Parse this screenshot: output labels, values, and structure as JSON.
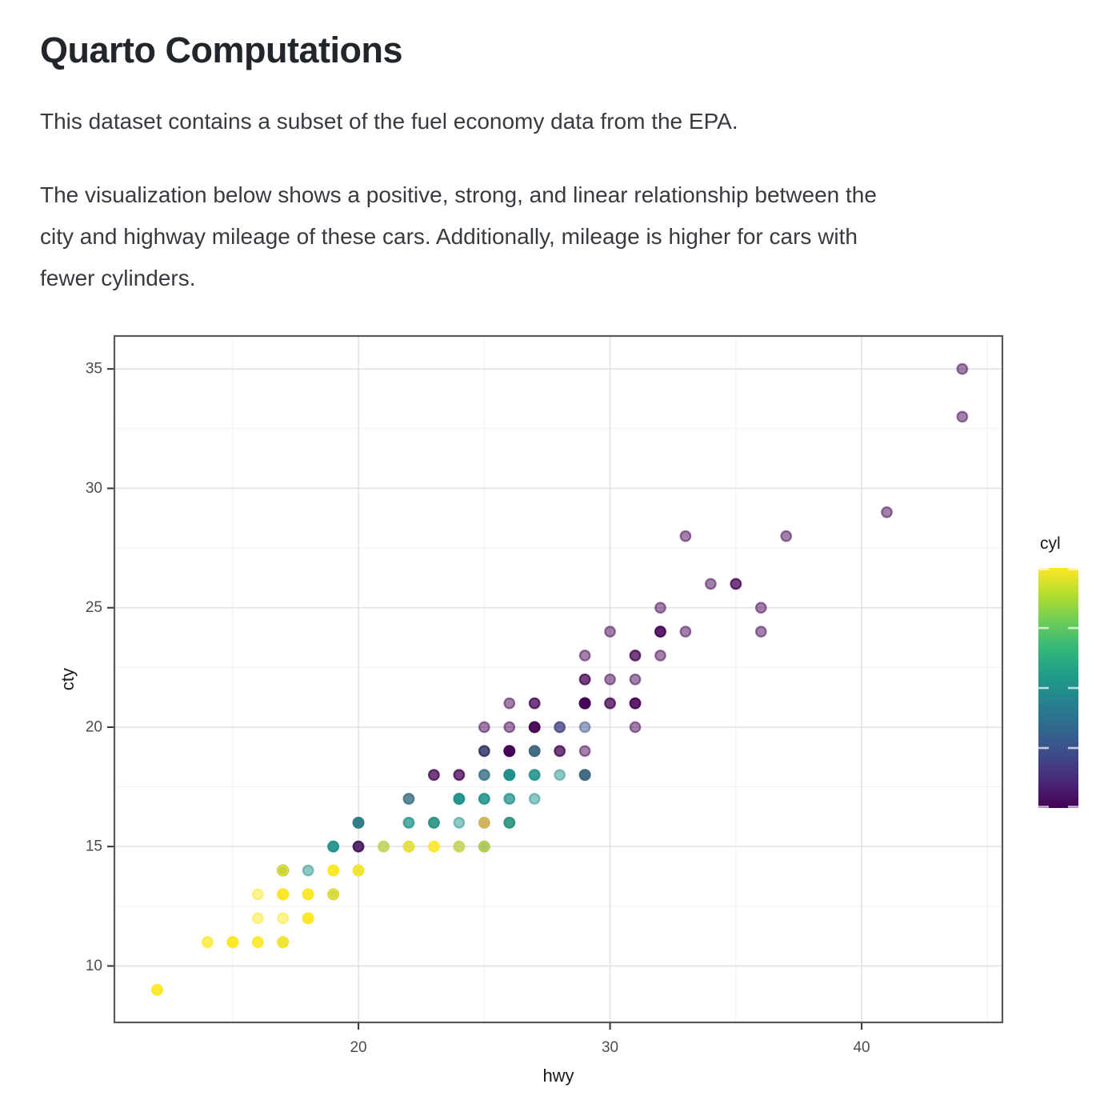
{
  "title": "Quarto Computations",
  "paragraphs": {
    "p1": "This dataset contains a subset of the fuel economy data from the EPA.",
    "p2": "The visualization below shows a positive, strong, and linear relationship between the\ncity and highway mileage of these cars. Additionally, mileage is higher for cars with\nfewer cylinders."
  },
  "chart_data": {
    "type": "scatter",
    "xlabel": "hwy",
    "ylabel": "cty",
    "xlim": [
      10.3,
      45.7
    ],
    "ylim": [
      7.6,
      36.4
    ],
    "x_ticks": [
      20,
      30,
      40
    ],
    "y_ticks": [
      10,
      15,
      20,
      25,
      30,
      35
    ],
    "x_minor": [
      15,
      25,
      35,
      45
    ],
    "y_minor": [
      12.5,
      17.5,
      22.5,
      27.5,
      32.5
    ],
    "grid": "on",
    "point_alpha": 0.5,
    "panel_border_color": "#5a5a5a",
    "major_grid_color": "#e2e2e2",
    "minor_grid_color": "#f0f0f0",
    "tick_color": "#333333",
    "tick_label_color": "#4d4d4d",
    "axis_title_color": "#1a1a1a",
    "legend": {
      "title": "cyl",
      "position": "right",
      "min": 4,
      "max": 8,
      "tick_values": [
        8,
        7,
        6,
        5,
        4
      ],
      "colors": {
        "4": "#440154",
        "5": "#3B528B",
        "6": "#21918C",
        "8": "#FDE725"
      },
      "gradient_top_to_bottom": [
        "#FDE725",
        "#B4DE2C",
        "#6DCD59",
        "#35B779",
        "#1F9E89",
        "#26828E",
        "#31688E",
        "#3E4A89",
        "#482878",
        "#440154"
      ]
    },
    "points": [
      {
        "hwy": 44,
        "cty": 35,
        "cyl": [
          4
        ]
      },
      {
        "hwy": 44,
        "cty": 33,
        "cyl": [
          4
        ]
      },
      {
        "hwy": 41,
        "cty": 29,
        "cyl": [
          4
        ]
      },
      {
        "hwy": 33,
        "cty": 28,
        "cyl": [
          4
        ]
      },
      {
        "hwy": 37,
        "cty": 28,
        "cyl": [
          4
        ]
      },
      {
        "hwy": 34,
        "cty": 26,
        "cyl": [
          4
        ]
      },
      {
        "hwy": 35,
        "cty": 26,
        "cyl": [
          4,
          4
        ]
      },
      {
        "hwy": 32,
        "cty": 25,
        "cyl": [
          4
        ]
      },
      {
        "hwy": 36,
        "cty": 25,
        "cyl": [
          4
        ]
      },
      {
        "hwy": 30,
        "cty": 24,
        "cyl": [
          4
        ]
      },
      {
        "hwy": 32,
        "cty": 24,
        "cyl": [
          4,
          4,
          4
        ]
      },
      {
        "hwy": 33,
        "cty": 24,
        "cyl": [
          4
        ]
      },
      {
        "hwy": 36,
        "cty": 24,
        "cyl": [
          4
        ]
      },
      {
        "hwy": 29,
        "cty": 23,
        "cyl": [
          4
        ]
      },
      {
        "hwy": 31,
        "cty": 23,
        "cyl": [
          4,
          4
        ]
      },
      {
        "hwy": 32,
        "cty": 23,
        "cyl": [
          4
        ]
      },
      {
        "hwy": 29,
        "cty": 22,
        "cyl": [
          4,
          4
        ]
      },
      {
        "hwy": 30,
        "cty": 22,
        "cyl": [
          4
        ]
      },
      {
        "hwy": 31,
        "cty": 22,
        "cyl": [
          4
        ]
      },
      {
        "hwy": 26,
        "cty": 21,
        "cyl": [
          4
        ]
      },
      {
        "hwy": 27,
        "cty": 21,
        "cyl": [
          4,
          4
        ]
      },
      {
        "hwy": 29,
        "cty": 21,
        "cyl": [
          5,
          5,
          4,
          4,
          4,
          4,
          4,
          4,
          4,
          4
        ]
      },
      {
        "hwy": 30,
        "cty": 21,
        "cyl": [
          4,
          4
        ]
      },
      {
        "hwy": 31,
        "cty": 21,
        "cyl": [
          4,
          4,
          4
        ]
      },
      {
        "hwy": 25,
        "cty": 20,
        "cyl": [
          4
        ]
      },
      {
        "hwy": 26,
        "cty": 20,
        "cyl": [
          4
        ]
      },
      {
        "hwy": 27,
        "cty": 20,
        "cyl": [
          4,
          4,
          4,
          4
        ]
      },
      {
        "hwy": 28,
        "cty": 20,
        "cyl": [
          4,
          5
        ]
      },
      {
        "hwy": 29,
        "cty": 20,
        "cyl": [
          5
        ]
      },
      {
        "hwy": 31,
        "cty": 20,
        "cyl": [
          4
        ]
      },
      {
        "hwy": 25,
        "cty": 19,
        "cyl": [
          6,
          6,
          4
        ]
      },
      {
        "hwy": 26,
        "cty": 19,
        "cyl": [
          6,
          4,
          4,
          4,
          4,
          4
        ]
      },
      {
        "hwy": 27,
        "cty": 19,
        "cyl": [
          4,
          4,
          6
        ]
      },
      {
        "hwy": 28,
        "cty": 19,
        "cyl": [
          4,
          4
        ]
      },
      {
        "hwy": 29,
        "cty": 19,
        "cyl": [
          4
        ]
      },
      {
        "hwy": 23,
        "cty": 18,
        "cyl": [
          4,
          4
        ]
      },
      {
        "hwy": 24,
        "cty": 18,
        "cyl": [
          4,
          4
        ]
      },
      {
        "hwy": 25,
        "cty": 18,
        "cyl": [
          4,
          6
        ]
      },
      {
        "hwy": 26,
        "cty": 18,
        "cyl": [
          4,
          6,
          6,
          6,
          6,
          6,
          6,
          6,
          6,
          6
        ]
      },
      {
        "hwy": 27,
        "cty": 18,
        "cyl": [
          6,
          6,
          6
        ]
      },
      {
        "hwy": 28,
        "cty": 18,
        "cyl": [
          6
        ]
      },
      {
        "hwy": 29,
        "cty": 18,
        "cyl": [
          4,
          4,
          6
        ]
      },
      {
        "hwy": 22,
        "cty": 17,
        "cyl": [
          4,
          6
        ]
      },
      {
        "hwy": 24,
        "cty": 17,
        "cyl": [
          6,
          6,
          6,
          6,
          6
        ]
      },
      {
        "hwy": 25,
        "cty": 17,
        "cyl": [
          6,
          6,
          6
        ]
      },
      {
        "hwy": 26,
        "cty": 17,
        "cyl": [
          6,
          6
        ]
      },
      {
        "hwy": 27,
        "cty": 17,
        "cyl": [
          6
        ]
      },
      {
        "hwy": 20,
        "cty": 16,
        "cyl": [
          4,
          4,
          6,
          6
        ]
      },
      {
        "hwy": 22,
        "cty": 16,
        "cyl": [
          6,
          6
        ]
      },
      {
        "hwy": 23,
        "cty": 16,
        "cyl": [
          8,
          6,
          6,
          6
        ]
      },
      {
        "hwy": 24,
        "cty": 16,
        "cyl": [
          6
        ]
      },
      {
        "hwy": 25,
        "cty": 16,
        "cyl": [
          4,
          8
        ]
      },
      {
        "hwy": 26,
        "cty": 16,
        "cyl": [
          8,
          8,
          6,
          6,
          6
        ]
      },
      {
        "hwy": 19,
        "cty": 15,
        "cyl": [
          6,
          6,
          6,
          6
        ]
      },
      {
        "hwy": 20,
        "cty": 15,
        "cyl": [
          6,
          4,
          4
        ]
      },
      {
        "hwy": 21,
        "cty": 15,
        "cyl": [
          6,
          8
        ]
      },
      {
        "hwy": 22,
        "cty": 15,
        "cyl": [
          6,
          8,
          8
        ]
      },
      {
        "hwy": 23,
        "cty": 15,
        "cyl": [
          8,
          8,
          8
        ]
      },
      {
        "hwy": 24,
        "cty": 15,
        "cyl": [
          6,
          8
        ]
      },
      {
        "hwy": 25,
        "cty": 15,
        "cyl": [
          6,
          6,
          8
        ]
      },
      {
        "hwy": 17,
        "cty": 14,
        "cyl": [
          6,
          6,
          6,
          6,
          6,
          8,
          8
        ]
      },
      {
        "hwy": 18,
        "cty": 14,
        "cyl": [
          6
        ]
      },
      {
        "hwy": 19,
        "cty": 14,
        "cyl": [
          8,
          8,
          8,
          8,
          8
        ]
      },
      {
        "hwy": 20,
        "cty": 14,
        "cyl": [
          6,
          8,
          8,
          8
        ]
      },
      {
        "hwy": 16,
        "cty": 13,
        "cyl": [
          8
        ]
      },
      {
        "hwy": 17,
        "cty": 13,
        "cyl": [
          6,
          6,
          8,
          8,
          8,
          8,
          8,
          8,
          8,
          8
        ]
      },
      {
        "hwy": 18,
        "cty": 13,
        "cyl": [
          8,
          8,
          8,
          8,
          8
        ]
      },
      {
        "hwy": 19,
        "cty": 13,
        "cyl": [
          6,
          6,
          8,
          8
        ]
      },
      {
        "hwy": 16,
        "cty": 12,
        "cyl": [
          8
        ]
      },
      {
        "hwy": 17,
        "cty": 12,
        "cyl": [
          8
        ]
      },
      {
        "hwy": 18,
        "cty": 12,
        "cyl": [
          8,
          8,
          8,
          8,
          8
        ]
      },
      {
        "hwy": 14,
        "cty": 11,
        "cyl": [
          8,
          8
        ]
      },
      {
        "hwy": 15,
        "cty": 11,
        "cyl": [
          8,
          8,
          8,
          8,
          8,
          8,
          8
        ]
      },
      {
        "hwy": 16,
        "cty": 11,
        "cyl": [
          8,
          8,
          8
        ]
      },
      {
        "hwy": 17,
        "cty": 11,
        "cyl": [
          6,
          8,
          8,
          8
        ]
      },
      {
        "hwy": 12,
        "cty": 9,
        "cyl": [
          8,
          8,
          8,
          8
        ]
      }
    ]
  }
}
